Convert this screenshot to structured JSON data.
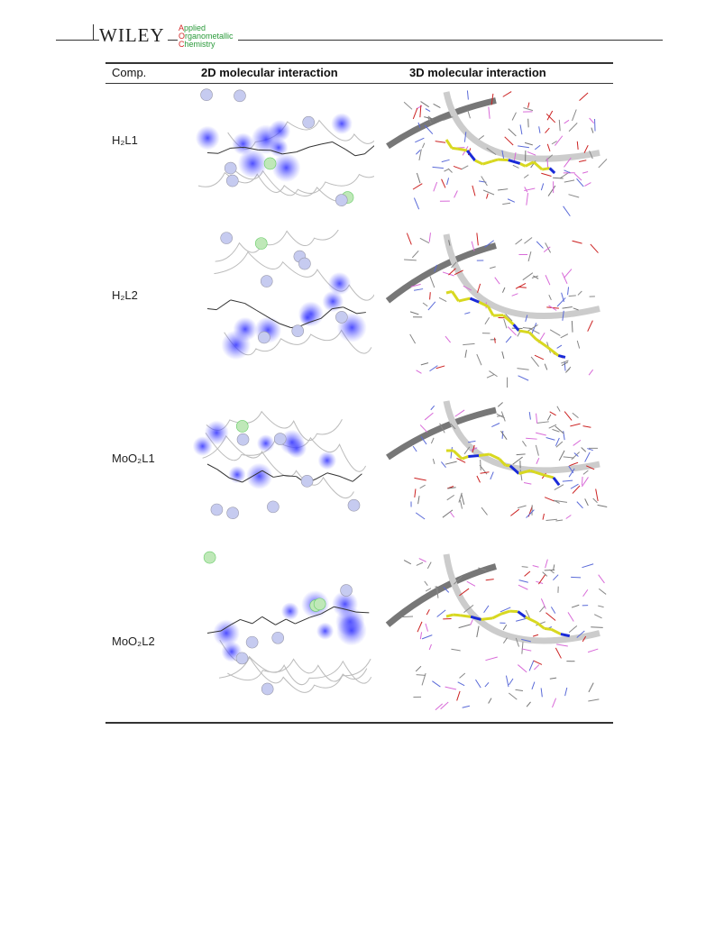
{
  "header": {
    "logo": "WILEY",
    "journal": [
      "Applied",
      "Organometallic",
      "Chemistry"
    ]
  },
  "table": {
    "columns": [
      "Comp.",
      "2D molecular interaction",
      "3D molecular interaction"
    ],
    "rows": [
      "H₂L1",
      "H₂L2",
      "MoO₂L1",
      "MoO₂L2"
    ]
  }
}
